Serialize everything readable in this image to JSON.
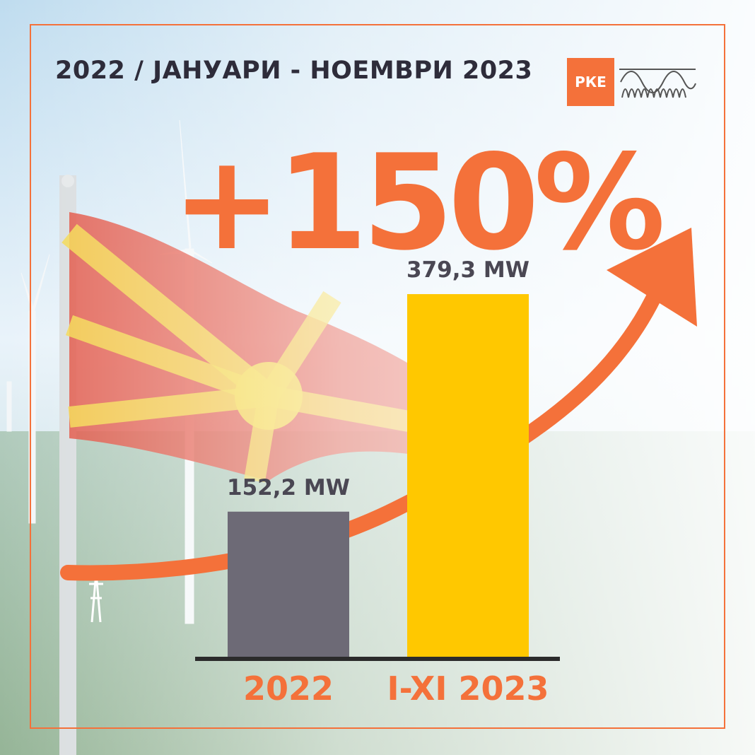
{
  "title": "2022 / ЈАНУАРИ - НОЕМВРИ 2023",
  "logo": {
    "text": "РКЕ",
    "icon": "wave-icon"
  },
  "headline": "+150%",
  "colors": {
    "accent": "#f4713a",
    "bar_2022": "#6d6a76",
    "bar_2023": "#ffc800",
    "text_dark": "#2e2c3a",
    "axis": "#2b2b2b"
  },
  "chart_data": {
    "type": "bar",
    "categories": [
      "2022",
      "I-XI 2023"
    ],
    "values": [
      152.2,
      379.3
    ],
    "data_labels": [
      "152,2 MW",
      "379,3 MW"
    ],
    "unit": "MW",
    "ylim": [
      0,
      400
    ],
    "grid": false,
    "legend": "none"
  }
}
